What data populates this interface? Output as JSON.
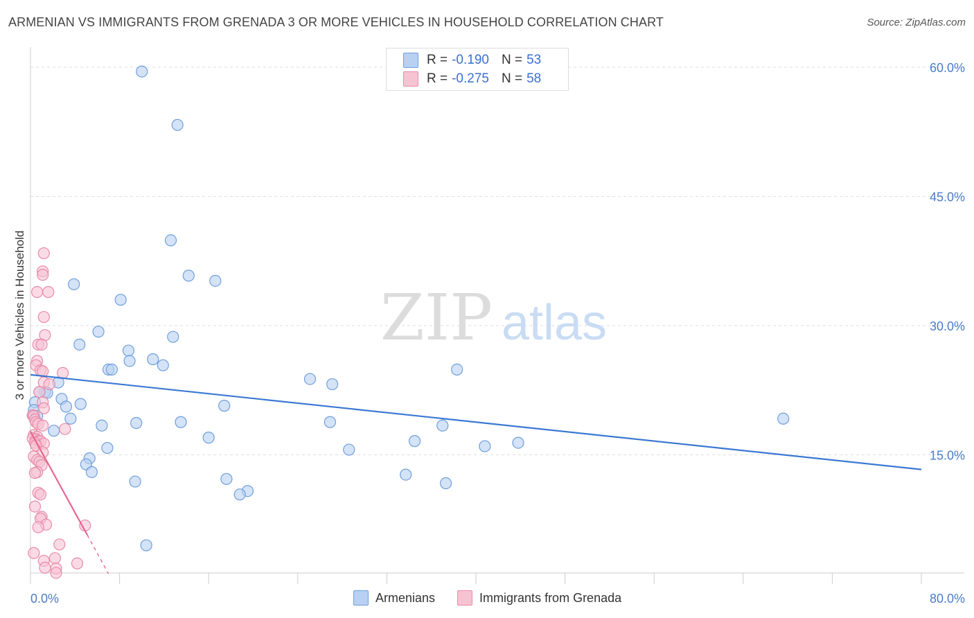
{
  "header": {
    "title": "ARMENIAN VS IMMIGRANTS FROM GRENADA 3 OR MORE VEHICLES IN HOUSEHOLD CORRELATION CHART",
    "source": "Source: ZipAtlas.com"
  },
  "legend": {
    "series1": {
      "r_label": "R =",
      "r_value": "-0.190",
      "n_label": "N =",
      "n_value": "53"
    },
    "series2": {
      "r_label": "R =",
      "r_value": "-0.275",
      "n_label": "N =",
      "n_value": "58"
    }
  },
  "bottom_legend": {
    "series1": "Armenians",
    "series2": "Immigrants from Grenada"
  },
  "watermark": {
    "zip": "ZIP",
    "atlas": "atlas"
  },
  "colors": {
    "blue_fill": "#b8d0f2",
    "blue_stroke": "#6f9edb",
    "blue_line": "#3a78d4",
    "pink_fill": "#f6c3d3",
    "pink_stroke": "#e88aa8",
    "pink_line": "#e8658f"
  },
  "chart_data": {
    "type": "scatter",
    "title": "ARMENIAN VS IMMIGRANTS FROM GRENADA 3 OR MORE VEHICLES IN HOUSEHOLD CORRELATION CHART",
    "xlabel": "",
    "ylabel": "3 or more Vehicles in Household",
    "xlim": [
      0,
      80
    ],
    "ylim": [
      0,
      60
    ],
    "x_tick_labels": [
      "0.0%",
      "80.0%"
    ],
    "y_ticks": [
      15,
      30,
      45,
      60
    ],
    "y_tick_labels": [
      "15.0%",
      "30.0%",
      "45.0%",
      "60.0%"
    ],
    "series": [
      {
        "name": "Armenians",
        "points": [
          [
            10.0,
            59.5
          ],
          [
            13.2,
            53.3
          ],
          [
            12.6,
            39.9
          ],
          [
            14.2,
            35.8
          ],
          [
            16.6,
            35.2
          ],
          [
            3.9,
            34.8
          ],
          [
            8.1,
            33.0
          ],
          [
            6.1,
            29.3
          ],
          [
            12.8,
            28.7
          ],
          [
            4.4,
            27.8
          ],
          [
            8.8,
            27.1
          ],
          [
            11.0,
            26.1
          ],
          [
            8.9,
            25.9
          ],
          [
            11.9,
            25.4
          ],
          [
            7.0,
            24.9
          ],
          [
            7.3,
            24.9
          ],
          [
            38.3,
            24.9
          ],
          [
            25.1,
            23.8
          ],
          [
            27.1,
            23.2
          ],
          [
            2.5,
            23.4
          ],
          [
            1.3,
            22.3
          ],
          [
            1.5,
            22.2
          ],
          [
            0.8,
            22.3
          ],
          [
            2.8,
            21.5
          ],
          [
            0.4,
            21.1
          ],
          [
            4.5,
            20.9
          ],
          [
            3.2,
            20.6
          ],
          [
            17.4,
            20.7
          ],
          [
            0.3,
            20.2
          ],
          [
            0.2,
            19.6
          ],
          [
            0.6,
            19.5
          ],
          [
            67.6,
            19.2
          ],
          [
            3.6,
            19.2
          ],
          [
            9.5,
            18.7
          ],
          [
            13.5,
            18.8
          ],
          [
            26.9,
            18.8
          ],
          [
            6.4,
            18.4
          ],
          [
            37.0,
            18.4
          ],
          [
            2.1,
            17.8
          ],
          [
            16.0,
            17.0
          ],
          [
            34.5,
            16.6
          ],
          [
            43.8,
            16.4
          ],
          [
            40.8,
            16.0
          ],
          [
            6.9,
            15.8
          ],
          [
            28.6,
            15.6
          ],
          [
            5.3,
            14.6
          ],
          [
            5.0,
            13.9
          ],
          [
            5.5,
            13.0
          ],
          [
            33.7,
            12.7
          ],
          [
            17.6,
            12.2
          ],
          [
            9.4,
            11.9
          ],
          [
            37.3,
            11.7
          ],
          [
            19.5,
            10.8
          ],
          [
            18.8,
            10.4
          ],
          [
            10.4,
            4.5
          ]
        ],
        "trend": {
          "x": [
            0,
            80
          ],
          "y": [
            24.3,
            13.3
          ]
        }
      },
      {
        "name": "Immigrants from Grenada",
        "points": [
          [
            1.2,
            38.4
          ],
          [
            1.1,
            36.3
          ],
          [
            1.1,
            35.9
          ],
          [
            0.6,
            33.9
          ],
          [
            1.6,
            33.9
          ],
          [
            1.2,
            31.0
          ],
          [
            1.3,
            28.9
          ],
          [
            0.7,
            27.8
          ],
          [
            1.0,
            27.8
          ],
          [
            0.6,
            25.9
          ],
          [
            0.5,
            25.4
          ],
          [
            0.9,
            24.8
          ],
          [
            1.1,
            24.7
          ],
          [
            2.9,
            24.5
          ],
          [
            1.2,
            23.4
          ],
          [
            1.7,
            23.2
          ],
          [
            0.8,
            22.3
          ],
          [
            1.1,
            21.1
          ],
          [
            1.2,
            20.4
          ],
          [
            0.2,
            19.6
          ],
          [
            0.3,
            19.5
          ],
          [
            0.4,
            19.1
          ],
          [
            0.5,
            18.8
          ],
          [
            0.7,
            18.6
          ],
          [
            1.1,
            18.4
          ],
          [
            3.1,
            18.0
          ],
          [
            0.3,
            17.3
          ],
          [
            0.6,
            17.1
          ],
          [
            0.2,
            16.9
          ],
          [
            0.5,
            16.8
          ],
          [
            0.7,
            16.6
          ],
          [
            0.9,
            16.6
          ],
          [
            1.2,
            16.3
          ],
          [
            0.4,
            16.4
          ],
          [
            0.5,
            16.1
          ],
          [
            1.1,
            15.3
          ],
          [
            0.3,
            14.8
          ],
          [
            0.6,
            14.4
          ],
          [
            0.8,
            14.2
          ],
          [
            1.0,
            13.8
          ],
          [
            0.6,
            13.0
          ],
          [
            0.4,
            12.9
          ],
          [
            0.7,
            10.6
          ],
          [
            0.9,
            10.4
          ],
          [
            0.4,
            9.0
          ],
          [
            1.0,
            7.8
          ],
          [
            0.9,
            7.6
          ],
          [
            1.4,
            6.9
          ],
          [
            4.9,
            6.8
          ],
          [
            0.7,
            6.6
          ],
          [
            2.6,
            4.6
          ],
          [
            0.3,
            3.6
          ],
          [
            2.2,
            3.0
          ],
          [
            1.2,
            2.7
          ],
          [
            1.3,
            1.9
          ],
          [
            4.2,
            2.4
          ],
          [
            2.3,
            1.8
          ],
          [
            2.3,
            1.3
          ]
        ],
        "trend": {
          "x": [
            0,
            5.1
          ],
          "y": [
            17.7,
            5.7
          ]
        },
        "trend_dashed": {
          "x": [
            5.1,
            7.0
          ],
          "y": [
            5.7,
            1.2
          ]
        }
      }
    ]
  }
}
